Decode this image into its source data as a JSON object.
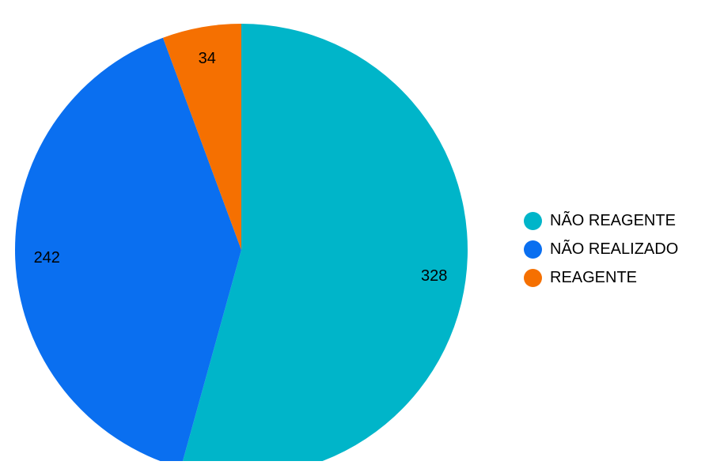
{
  "chart_data": {
    "type": "pie",
    "categories": [
      "NÃO REAGENTE",
      "NÃO REALIZADO",
      "REAGENTE"
    ],
    "values": [
      328,
      242,
      34
    ],
    "colors": [
      "#00b5c9",
      "#0a6ff0",
      "#f57001"
    ],
    "start_angle": "12 o'clock",
    "direction": "clockwise",
    "data_labels": true,
    "legend_position": "right"
  }
}
